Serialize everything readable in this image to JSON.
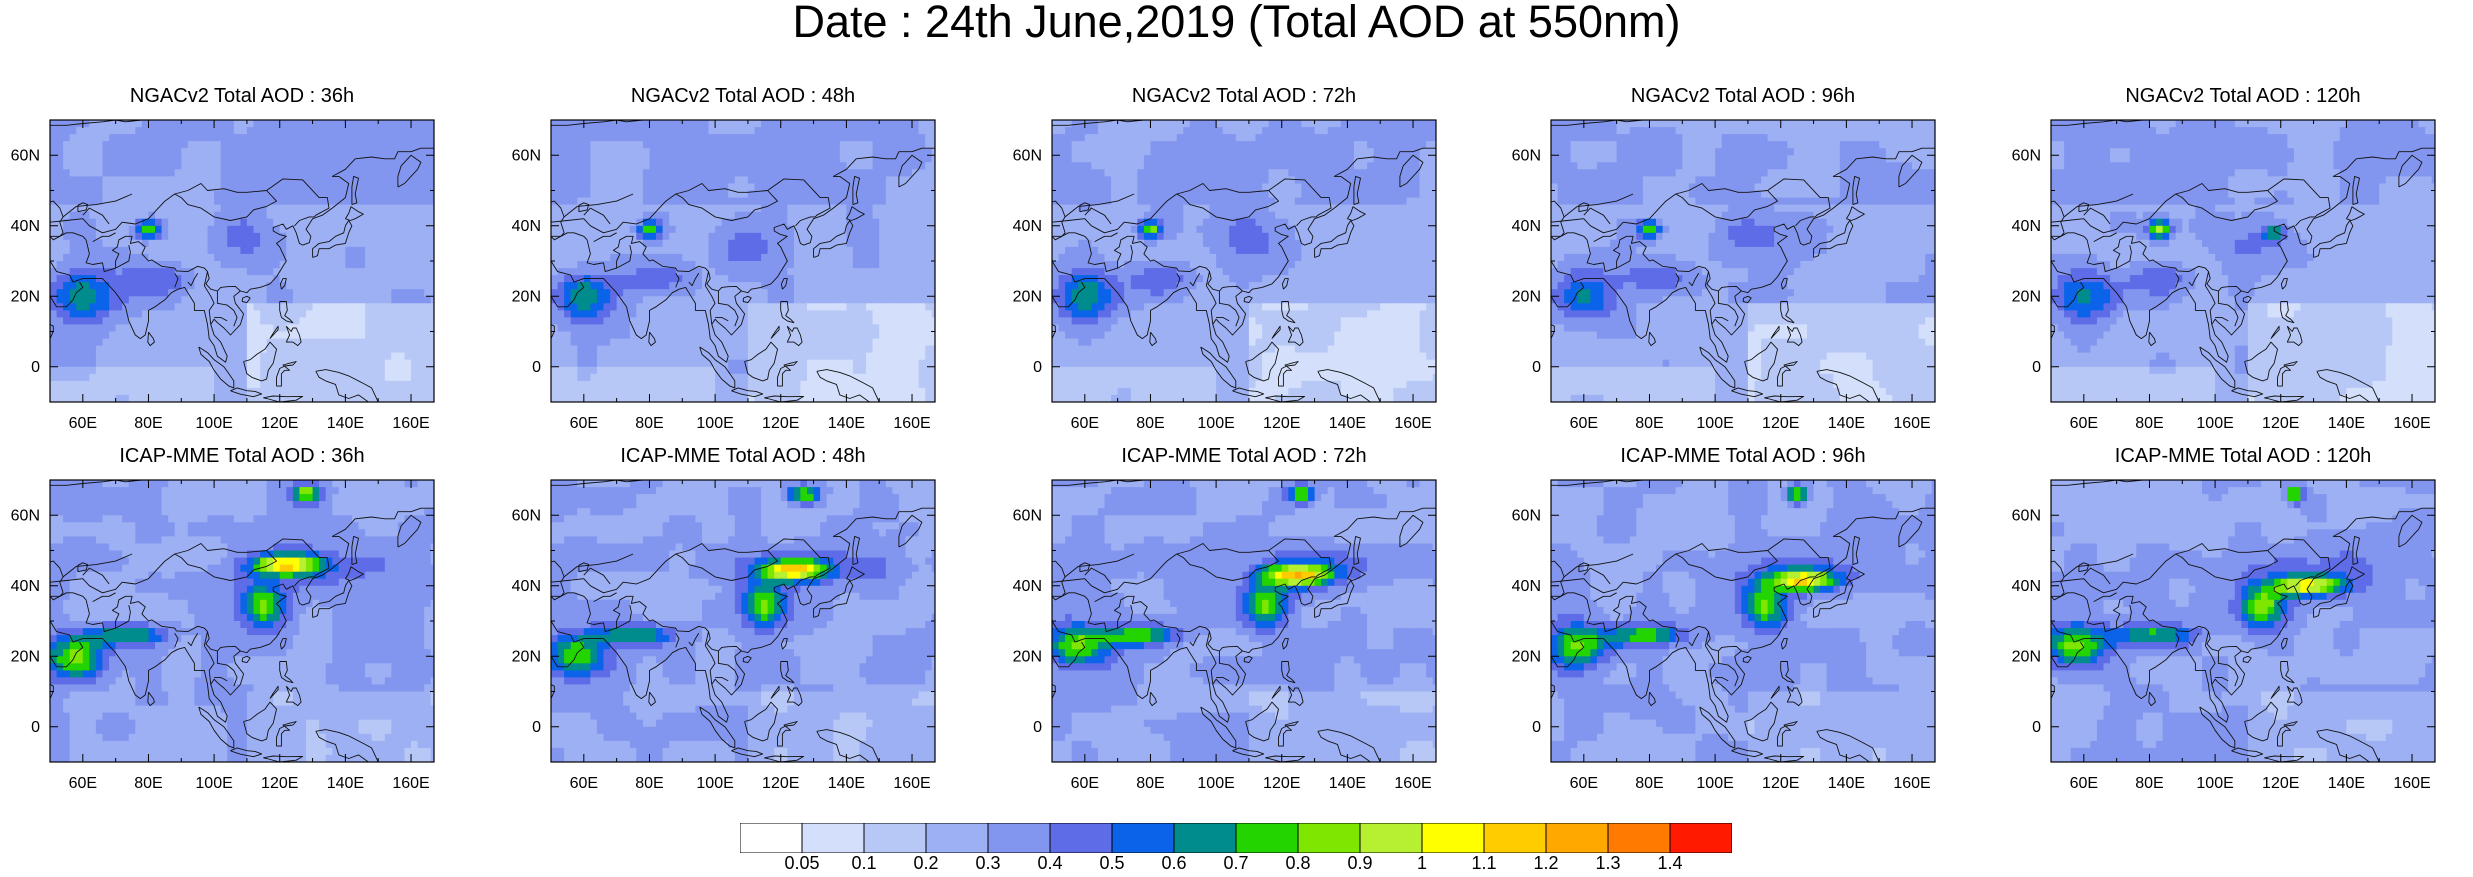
{
  "title": "Date : 24th June,2019 (Total AOD at 550nm)",
  "axes": {
    "y_ticks": [
      "60N",
      "40N",
      "20N",
      "0"
    ],
    "x_ticks": [
      "60E",
      "80E",
      "100E",
      "120E",
      "140E",
      "160E"
    ],
    "lon_range": [
      50,
      167
    ],
    "lat_range": [
      -10,
      70
    ]
  },
  "panels": [
    {
      "title": "NGACv2 Total AOD : 36h"
    },
    {
      "title": "NGACv2 Total AOD : 48h"
    },
    {
      "title": "NGACv2 Total AOD : 72h"
    },
    {
      "title": "NGACv2 Total AOD : 96h"
    },
    {
      "title": "NGACv2 Total AOD : 120h"
    },
    {
      "title": "ICAP-MME Total AOD : 36h"
    },
    {
      "title": "ICAP-MME Total AOD : 48h"
    },
    {
      "title": "ICAP-MME Total AOD : 72h"
    },
    {
      "title": "ICAP-MME Total AOD : 96h"
    },
    {
      "title": "ICAP-MME Total AOD : 120h"
    }
  ],
  "colorbar": {
    "labels": [
      "0.05",
      "0.1",
      "0.2",
      "0.3",
      "0.4",
      "0.5",
      "0.6",
      "0.7",
      "0.8",
      "0.9",
      "1",
      "1.1",
      "1.2",
      "1.3",
      "1.4"
    ],
    "colors": [
      "#ffffff",
      "#d4e0fb",
      "#b8c8f6",
      "#9db0f3",
      "#8396ef",
      "#5f6ce8",
      "#0a63e8",
      "#008c8c",
      "#23d400",
      "#7ee600",
      "#b6f030",
      "#ffff00",
      "#ffcc00",
      "#ffa800",
      "#ff7a00",
      "#ff1a00"
    ]
  }
}
